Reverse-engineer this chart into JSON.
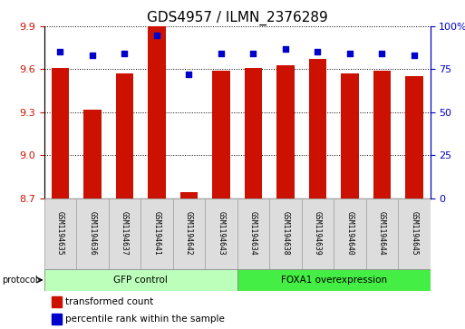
{
  "title": "GDS4957 / ILMN_2376289",
  "samples": [
    "GSM1194635",
    "GSM1194636",
    "GSM1194637",
    "GSM1194641",
    "GSM1194642",
    "GSM1194643",
    "GSM1194634",
    "GSM1194638",
    "GSM1194639",
    "GSM1194640",
    "GSM1194644",
    "GSM1194645"
  ],
  "bar_values": [
    9.61,
    9.32,
    9.57,
    9.9,
    8.74,
    9.59,
    9.61,
    9.63,
    9.67,
    9.57,
    9.59,
    9.55
  ],
  "dot_values": [
    85,
    83,
    84,
    95,
    72,
    84,
    84,
    87,
    85,
    84,
    84,
    83
  ],
  "bar_bottom": 8.7,
  "ylim_left": [
    8.7,
    9.9
  ],
  "ylim_right": [
    0,
    100
  ],
  "yticks_left": [
    8.7,
    9.0,
    9.3,
    9.6,
    9.9
  ],
  "yticks_right": [
    0,
    25,
    50,
    75,
    100
  ],
  "bar_color": "#cc1100",
  "dot_color": "#0000cc",
  "group1_label": "GFP control",
  "group2_label": "FOXA1 overexpression",
  "group1_indices": [
    0,
    1,
    2,
    3,
    4,
    5
  ],
  "group2_indices": [
    6,
    7,
    8,
    9,
    10,
    11
  ],
  "group1_color": "#bbffbb",
  "group2_color": "#44ee44",
  "protocol_label": "protocol",
  "legend_bar_label": "transformed count",
  "legend_dot_label": "percentile rank within the sample",
  "tick_color_left": "#cc1100",
  "tick_color_right": "#0000cc",
  "background_color": "#ffffff",
  "title_fontsize": 11,
  "bar_width": 0.55,
  "cell_color": "#dddddd",
  "cell_edge_color": "#aaaaaa"
}
